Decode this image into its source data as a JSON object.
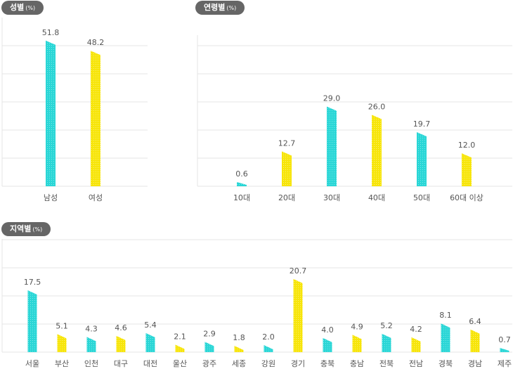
{
  "colors": {
    "cyan": "#2ad6d6",
    "yellow": "#f7e50a",
    "grid": "#e4e4e4",
    "label": "#555555",
    "pill_bg": "#666666"
  },
  "chart_data": [
    {
      "id": "gender",
      "type": "bar",
      "title": "성별",
      "unit": "(%)",
      "categories": [
        "남성",
        "여성"
      ],
      "values": [
        51.8,
        48.2
      ],
      "colors": [
        "cyan",
        "yellow"
      ],
      "ylim": [
        0,
        60
      ],
      "grid": true
    },
    {
      "id": "age",
      "type": "bar",
      "title": "연령별",
      "unit": "(%)",
      "categories": [
        "10대",
        "20대",
        "30대",
        "40대",
        "50대",
        "60대 이상"
      ],
      "values": [
        0.6,
        12.7,
        29.0,
        26.0,
        19.7,
        12.0
      ],
      "colors": [
        "cyan",
        "yellow",
        "cyan",
        "yellow",
        "cyan",
        "yellow"
      ],
      "ylim": [
        0,
        55
      ],
      "grid": true
    },
    {
      "id": "region",
      "type": "bar",
      "title": "지역별",
      "unit": "(%)",
      "categories": [
        "서울",
        "부산",
        "인천",
        "대구",
        "대전",
        "울산",
        "광주",
        "세종",
        "강원",
        "경기",
        "충북",
        "충남",
        "전북",
        "전남",
        "경북",
        "경남",
        "제주"
      ],
      "values": [
        17.5,
        5.1,
        4.3,
        4.6,
        5.4,
        2.1,
        2.9,
        1.8,
        2.0,
        20.7,
        4.0,
        4.9,
        5.2,
        4.2,
        8.1,
        6.4,
        0.7
      ],
      "colors": [
        "cyan",
        "yellow",
        "cyan",
        "yellow",
        "cyan",
        "yellow",
        "cyan",
        "yellow",
        "cyan",
        "yellow",
        "cyan",
        "yellow",
        "cyan",
        "yellow",
        "cyan",
        "yellow",
        "cyan"
      ],
      "ylim": [
        0,
        32
      ],
      "grid": true
    }
  ]
}
